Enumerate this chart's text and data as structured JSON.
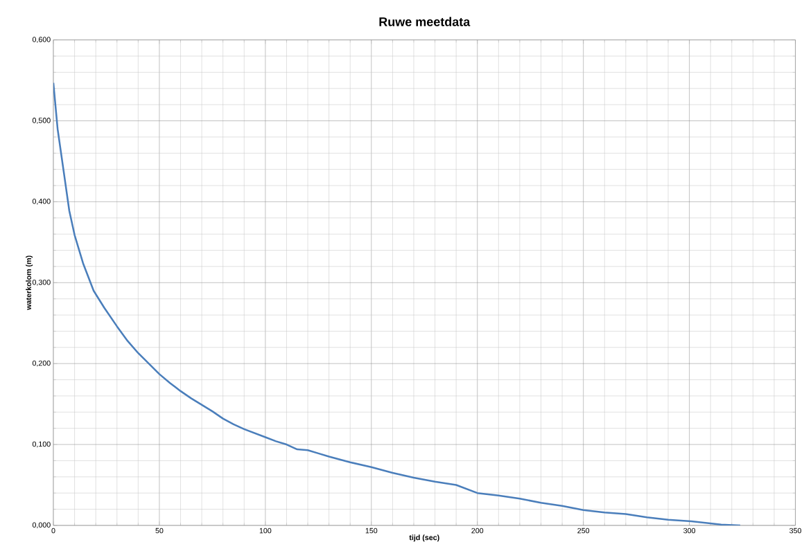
{
  "chart_data": {
    "type": "line",
    "title": "Ruwe meetdata",
    "xlabel": "tijd (sec)",
    "ylabel": "waterkolom (m)",
    "x": [
      0,
      2,
      5,
      7.5,
      10,
      14,
      19,
      24,
      30,
      35,
      40,
      45,
      50,
      55,
      60,
      65,
      70,
      75,
      80,
      85,
      90,
      95,
      100,
      105,
      110,
      115,
      120,
      125,
      130,
      140,
      150,
      160,
      170,
      180,
      190,
      200,
      210,
      220,
      230,
      240,
      250,
      260,
      270,
      280,
      290,
      301,
      308,
      315,
      324
    ],
    "series": [
      {
        "color": "#4a7ebb",
        "values": [
          0.547,
          0.49,
          0.435,
          0.389,
          0.359,
          0.324,
          0.29,
          0.269,
          0.246,
          0.228,
          0.213,
          0.2,
          0.187,
          0.176,
          0.166,
          0.157,
          0.149,
          0.141,
          0.132,
          0.125,
          0.119,
          0.114,
          0.109,
          0.104,
          0.1,
          0.094,
          0.093,
          0.089,
          0.085,
          0.078,
          0.072,
          0.065,
          0.059,
          0.054,
          0.05,
          0.04,
          0.037,
          0.033,
          0.028,
          0.024,
          0.019,
          0.016,
          0.014,
          0.01,
          0.007,
          0.005,
          0.003,
          0.001,
          0.0
        ]
      }
    ],
    "xlim": [
      0,
      350
    ],
    "ylim": [
      0,
      0.6
    ],
    "xticks": [
      0,
      50,
      100,
      150,
      200,
      250,
      300,
      350
    ],
    "yticks": [
      {
        "value": 0,
        "label": "0,000"
      },
      {
        "value": 0.1,
        "label": "0,100"
      },
      {
        "value": 0.2,
        "label": "0,200"
      },
      {
        "value": 0.3,
        "label": "0,300"
      },
      {
        "value": 0.4,
        "label": "0,400"
      },
      {
        "value": 0.5,
        "label": "0,500"
      },
      {
        "value": 0.6,
        "label": "0,600"
      }
    ],
    "grid": true,
    "marker": "none",
    "line_style": "solid"
  }
}
